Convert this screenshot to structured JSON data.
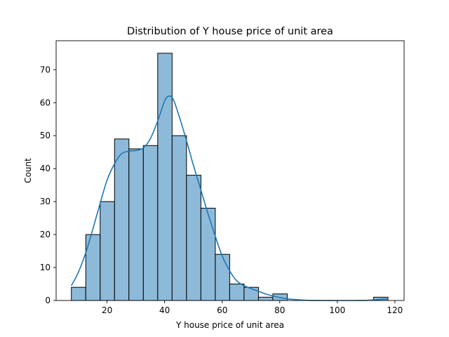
{
  "chart_data": {
    "type": "bar",
    "title": "Distribution of Y house price of unit area",
    "xlabel": "Y house price of unit area",
    "ylabel": "Count",
    "xlim": [
      2.3,
      123.2
    ],
    "ylim": [
      0,
      78.8
    ],
    "xticks": [
      20,
      40,
      60,
      80,
      100,
      120
    ],
    "yticks": [
      0,
      10,
      20,
      30,
      40,
      50,
      60,
      70
    ],
    "bin_edges": [
      7.6,
      12.6,
      17.6,
      22.6,
      27.6,
      32.6,
      37.6,
      42.6,
      47.6,
      52.6,
      57.6,
      62.6,
      67.6,
      72.6,
      77.6,
      82.6,
      87.6,
      92.6,
      97.6,
      102.6,
      107.6,
      112.6,
      117.6
    ],
    "values": [
      4,
      20,
      30,
      49,
      46,
      47,
      75,
      50,
      38,
      28,
      14,
      5,
      4,
      1,
      2,
      0,
      0,
      0,
      0,
      0,
      0,
      1
    ],
    "kde": {
      "x": [
        7.6,
        10,
        12.6,
        15,
        17.6,
        20,
        22.6,
        25,
        27.6,
        30,
        32.6,
        35,
        37.6,
        40,
        41.5,
        43,
        45,
        47.6,
        50,
        52.6,
        55,
        57.6,
        60,
        62.6,
        65,
        67.6,
        70,
        72.6,
        75,
        77.6,
        80,
        82.6,
        85,
        87.6,
        90,
        95,
        100,
        105,
        110,
        113,
        115,
        117.6
      ],
      "y": [
        4.5,
        8.5,
        14.5,
        21.5,
        29.5,
        36.5,
        41.5,
        44.5,
        45.3,
        45.5,
        46.3,
        49,
        54.5,
        60.5,
        62,
        61,
        56,
        48.5,
        41,
        33.5,
        26.5,
        19.5,
        13.5,
        9,
        6,
        4.5,
        3.6,
        2.8,
        2,
        1.4,
        0.9,
        0.5,
        0.3,
        0.15,
        0.05,
        0.0,
        0.0,
        0.0,
        0.05,
        0.2,
        0.35,
        0.5
      ]
    }
  }
}
